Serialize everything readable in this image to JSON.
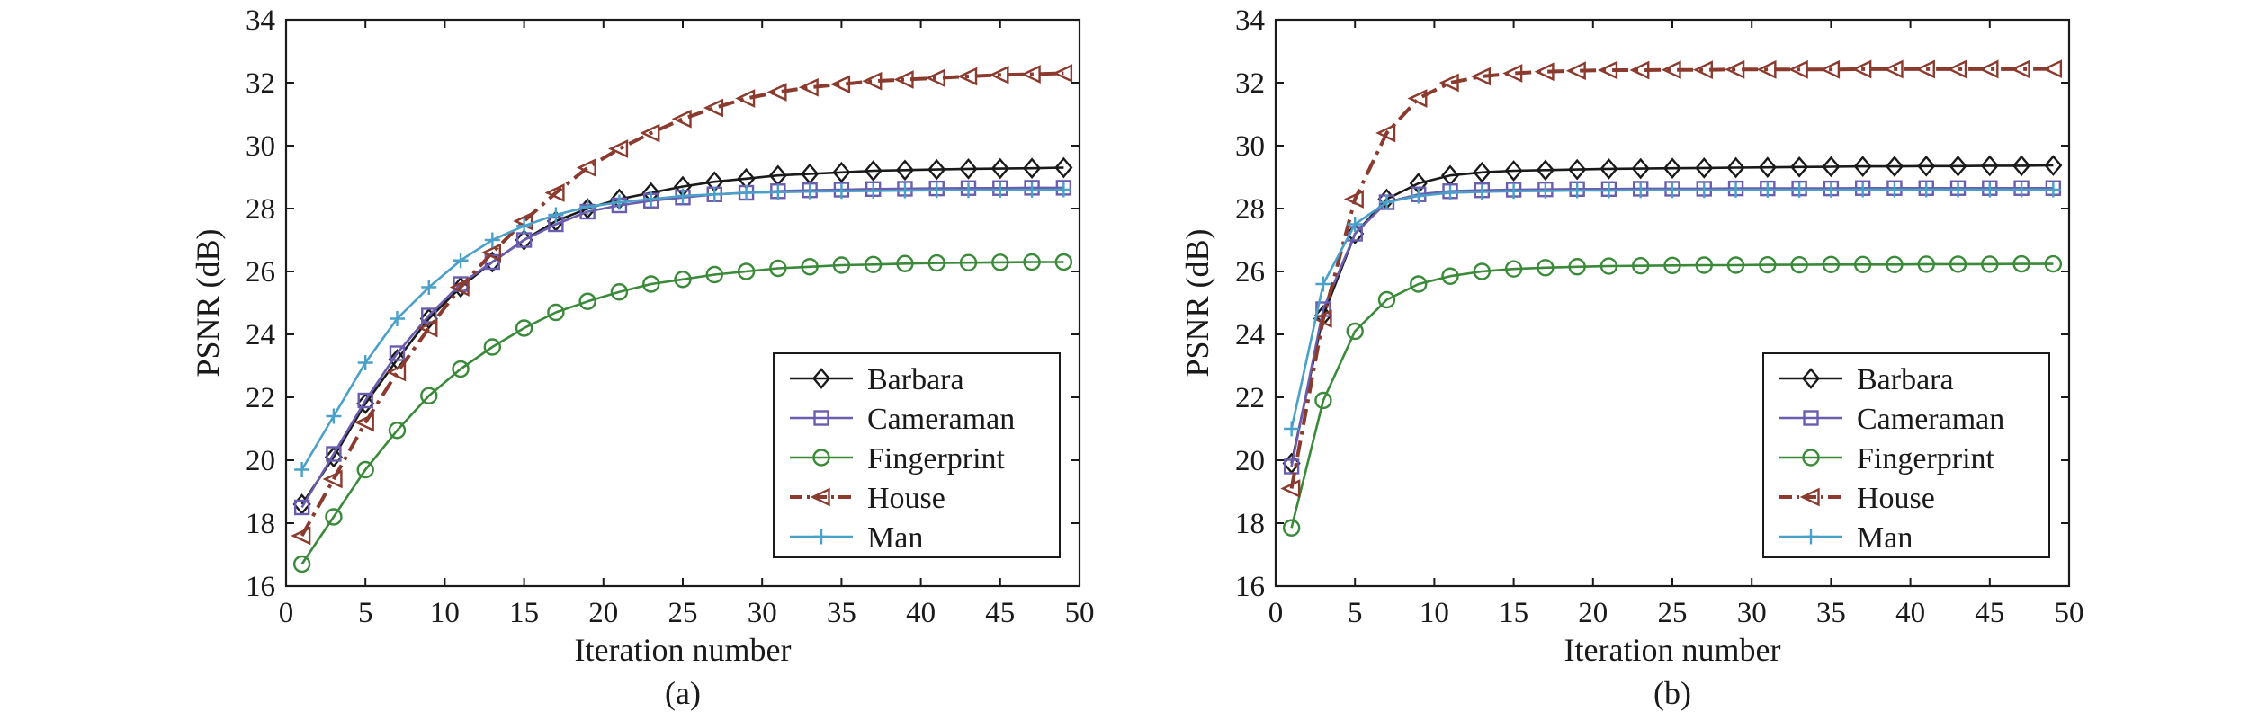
{
  "chart_data": [
    {
      "type": "line",
      "caption": "(a)",
      "xlabel": "Iteration number",
      "ylabel": "PSNR (dB)",
      "xlim": [
        0,
        50
      ],
      "ylim": [
        16,
        34
      ],
      "xticks": [
        "0",
        "5",
        "10",
        "15",
        "20",
        "25",
        "30",
        "35",
        "40",
        "45",
        "50"
      ],
      "yticks": [
        "16",
        "18",
        "20",
        "22",
        "24",
        "26",
        "28",
        "30",
        "32",
        "34"
      ],
      "legend_position": "lower-right",
      "grid": false,
      "x": [
        1,
        3,
        5,
        7,
        9,
        11,
        13,
        15,
        17,
        19,
        21,
        23,
        25,
        27,
        29,
        31,
        33,
        35,
        37,
        39,
        41,
        43,
        45,
        47,
        49
      ],
      "series": [
        {
          "name": "Barbara",
          "color": "#1a1a1a",
          "marker": "diamond",
          "dash": "solid",
          "values": [
            18.6,
            20.1,
            21.8,
            23.2,
            24.5,
            25.5,
            26.3,
            27.0,
            27.6,
            28.0,
            28.3,
            28.5,
            28.7,
            28.85,
            28.95,
            29.05,
            29.1,
            29.15,
            29.2,
            29.22,
            29.24,
            29.26,
            29.27,
            29.28,
            29.3
          ]
        },
        {
          "name": "Cameraman",
          "color": "#6a5cae",
          "marker": "square",
          "dash": "solid",
          "values": [
            18.5,
            20.2,
            21.9,
            23.4,
            24.6,
            25.6,
            26.3,
            27.0,
            27.5,
            27.9,
            28.1,
            28.25,
            28.35,
            28.45,
            28.5,
            28.55,
            28.58,
            28.6,
            28.62,
            28.63,
            28.64,
            28.65,
            28.65,
            28.66,
            28.66
          ]
        },
        {
          "name": "Fingerprint",
          "color": "#3a8a3a",
          "marker": "circle",
          "dash": "solid",
          "values": [
            16.7,
            18.2,
            19.7,
            20.95,
            22.05,
            22.9,
            23.6,
            24.2,
            24.7,
            25.05,
            25.35,
            25.6,
            25.75,
            25.9,
            26.0,
            26.1,
            26.15,
            26.2,
            26.22,
            26.25,
            26.27,
            26.28,
            26.29,
            26.3,
            26.3
          ]
        },
        {
          "name": "House",
          "color": "#8b3a2e",
          "marker": "triangle-left",
          "dash": "dashdot",
          "values": [
            17.6,
            19.4,
            21.2,
            22.8,
            24.2,
            25.5,
            26.6,
            27.6,
            28.5,
            29.3,
            29.9,
            30.4,
            30.85,
            31.2,
            31.5,
            31.7,
            31.85,
            31.95,
            32.05,
            32.1,
            32.15,
            32.2,
            32.25,
            32.27,
            32.3
          ]
        },
        {
          "name": "Man",
          "color": "#4aa0c8",
          "marker": "plus",
          "dash": "solid",
          "values": [
            19.7,
            21.4,
            23.1,
            24.5,
            25.5,
            26.35,
            27.0,
            27.45,
            27.8,
            28.05,
            28.2,
            28.3,
            28.4,
            28.45,
            28.5,
            28.52,
            28.54,
            28.55,
            28.56,
            28.57,
            28.58,
            28.58,
            28.59,
            28.59,
            28.6
          ]
        }
      ]
    },
    {
      "type": "line",
      "caption": "(b)",
      "xlabel": "Iteration number",
      "ylabel": "PSNR (dB)",
      "xlim": [
        0,
        50
      ],
      "ylim": [
        16,
        34
      ],
      "xticks": [
        "0",
        "5",
        "10",
        "15",
        "20",
        "25",
        "30",
        "35",
        "40",
        "45",
        "50"
      ],
      "yticks": [
        "16",
        "18",
        "20",
        "22",
        "24",
        "26",
        "28",
        "30",
        "32",
        "34"
      ],
      "legend_position": "lower-right",
      "grid": false,
      "x": [
        1,
        3,
        5,
        7,
        9,
        11,
        13,
        15,
        17,
        19,
        21,
        23,
        25,
        27,
        29,
        31,
        33,
        35,
        37,
        39,
        41,
        43,
        45,
        47,
        49
      ],
      "series": [
        {
          "name": "Barbara",
          "color": "#1a1a1a",
          "marker": "diamond",
          "dash": "solid",
          "values": [
            19.9,
            24.6,
            27.2,
            28.3,
            28.8,
            29.05,
            29.15,
            29.2,
            29.22,
            29.24,
            29.26,
            29.27,
            29.28,
            29.29,
            29.3,
            29.31,
            29.32,
            29.33,
            29.34,
            29.34,
            29.35,
            29.35,
            29.36,
            29.36,
            29.37
          ]
        },
        {
          "name": "Cameraman",
          "color": "#6a5cae",
          "marker": "square",
          "dash": "solid",
          "values": [
            19.8,
            24.8,
            27.2,
            28.2,
            28.45,
            28.55,
            28.58,
            28.6,
            28.61,
            28.62,
            28.62,
            28.63,
            28.63,
            28.63,
            28.64,
            28.64,
            28.64,
            28.64,
            28.65,
            28.65,
            28.65,
            28.65,
            28.65,
            28.65,
            28.65
          ]
        },
        {
          "name": "Fingerprint",
          "color": "#3a8a3a",
          "marker": "circle",
          "dash": "solid",
          "values": [
            17.85,
            21.9,
            24.1,
            25.1,
            25.6,
            25.85,
            26.0,
            26.08,
            26.12,
            26.15,
            26.17,
            26.18,
            26.19,
            26.2,
            26.2,
            26.21,
            26.21,
            26.22,
            26.22,
            26.22,
            26.23,
            26.23,
            26.23,
            26.24,
            26.24
          ]
        },
        {
          "name": "House",
          "color": "#8b3a2e",
          "marker": "triangle-left",
          "dash": "dashdot",
          "values": [
            19.1,
            24.5,
            28.3,
            30.4,
            31.5,
            32.0,
            32.2,
            32.3,
            32.35,
            32.38,
            32.4,
            32.4,
            32.41,
            32.41,
            32.42,
            32.42,
            32.42,
            32.42,
            32.43,
            32.43,
            32.43,
            32.43,
            32.43,
            32.43,
            32.44
          ]
        },
        {
          "name": "Man",
          "color": "#4aa0c8",
          "marker": "plus",
          "dash": "solid",
          "values": [
            21.0,
            25.6,
            27.5,
            28.2,
            28.4,
            28.5,
            28.53,
            28.55,
            28.56,
            28.57,
            28.57,
            28.58,
            28.58,
            28.58,
            28.59,
            28.59,
            28.59,
            28.59,
            28.6,
            28.6,
            28.6,
            28.6,
            28.6,
            28.6,
            28.6
          ]
        }
      ]
    }
  ]
}
